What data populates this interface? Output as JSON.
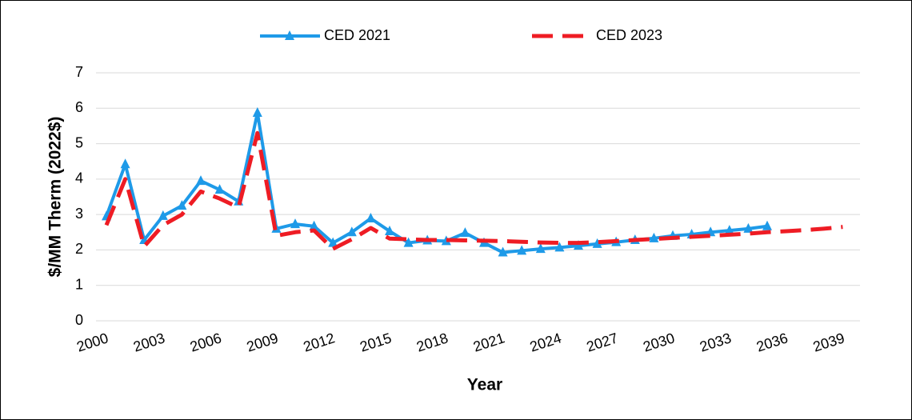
{
  "chart_data": {
    "type": "line",
    "x_label": "Year",
    "y_label": "$/MM Therm (2022$)",
    "categories": [
      2000,
      null,
      null,
      2003,
      null,
      null,
      2006,
      null,
      null,
      2009,
      null,
      null,
      2012,
      null,
      null,
      2015,
      null,
      null,
      2018,
      null,
      null,
      2021,
      null,
      null,
      2024,
      null,
      null,
      2027,
      null,
      null,
      2030,
      null,
      null,
      2033,
      null,
      null,
      2036,
      null,
      null,
      2039
    ],
    "series": [
      {
        "name": "CED 2021",
        "color": "#1e9ae8",
        "marker": "triangle",
        "dash": false,
        "values": [
          2.95,
          4.42,
          2.28,
          2.96,
          3.25,
          3.95,
          3.7,
          3.37,
          5.87,
          2.6,
          2.73,
          2.67,
          2.2,
          2.5,
          2.89,
          2.53,
          2.2,
          2.27,
          2.25,
          2.48,
          2.2,
          1.93,
          1.98,
          2.03,
          2.07,
          2.12,
          2.17,
          2.22,
          2.28,
          2.33,
          2.4,
          2.44,
          2.5,
          2.55,
          2.6,
          2.67,
          null,
          null,
          null,
          null
        ]
      },
      {
        "name": "CED 2023",
        "color": "#ee1c24",
        "marker": "none",
        "dash": true,
        "values": [
          2.7,
          4.0,
          2.1,
          2.7,
          3.0,
          3.65,
          3.45,
          3.2,
          5.3,
          2.4,
          2.5,
          2.55,
          2.03,
          2.3,
          2.62,
          2.32,
          2.3,
          2.28,
          2.28,
          2.27,
          2.26,
          2.25,
          2.23,
          2.21,
          2.2,
          2.2,
          2.22,
          2.25,
          2.28,
          2.31,
          2.34,
          2.37,
          2.4,
          2.43,
          2.46,
          2.5,
          2.53,
          2.56,
          2.6,
          2.65
        ]
      }
    ],
    "ylim": [
      0,
      7
    ],
    "yticks": [
      0,
      1,
      2,
      3,
      4,
      5,
      6,
      7
    ],
    "grid": true,
    "legend": "top"
  }
}
